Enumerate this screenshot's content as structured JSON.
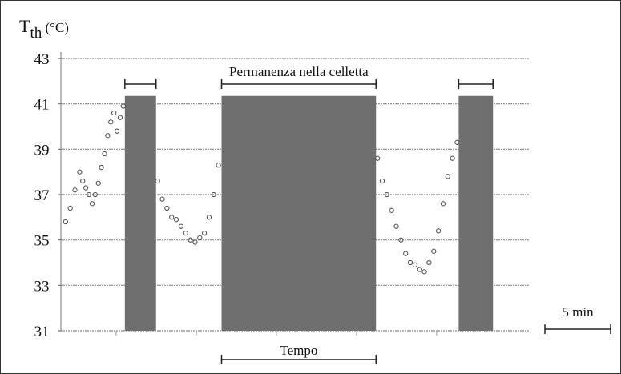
{
  "chart_data": {
    "type": "scatter",
    "ylabel_main": "T",
    "ylabel_sub": "th",
    "ylabel_unit": " (°C)",
    "ylim": [
      31,
      43
    ],
    "ytick_labels": [
      "43",
      "41",
      "39",
      "37",
      "35",
      "33",
      "31"
    ],
    "ytick_values": [
      43,
      41,
      39,
      37,
      35,
      33,
      31
    ],
    "x_unit_min": [
      0,
      30
    ],
    "grid": true,
    "annotations": {
      "top_bar_label": "Permanenza nella celletta",
      "bottom_bar_label": "Tempo",
      "scale_bar_label": "5 min"
    },
    "shaded_intervals": [
      {
        "x_start": 4.1,
        "x_end": 6.1
      },
      {
        "x_start": 10.3,
        "x_end": 20.2
      },
      {
        "x_start": 25.5,
        "x_end": 27.7
      }
    ],
    "series": [
      {
        "x": [
          0.3,
          0.6,
          0.9,
          1.2,
          1.4,
          1.6,
          1.8,
          2.0,
          2.2,
          2.4,
          2.6,
          2.8,
          3.0,
          3.2,
          3.4,
          3.6,
          3.8,
          4.0,
          6.2,
          6.5,
          6.8,
          7.1,
          7.4,
          7.7,
          8.0,
          8.3,
          8.6,
          8.9,
          9.2,
          9.5,
          9.8,
          10.1,
          20.3,
          20.6,
          20.9,
          21.2,
          21.5,
          21.8,
          22.1,
          22.4,
          22.7,
          23.0,
          23.3,
          23.6,
          23.9,
          24.2,
          24.5,
          24.8,
          25.1,
          25.4
        ],
        "y": [
          35.8,
          36.4,
          37.2,
          38.0,
          37.6,
          37.3,
          37.0,
          36.6,
          37.0,
          37.5,
          38.2,
          38.8,
          39.6,
          40.2,
          40.6,
          39.8,
          40.4,
          40.9,
          37.6,
          36.8,
          36.4,
          36.0,
          35.9,
          35.6,
          35.3,
          35.0,
          34.9,
          35.1,
          35.3,
          36.0,
          37.0,
          38.3,
          38.6,
          37.6,
          37.0,
          36.3,
          35.6,
          35.0,
          34.4,
          34.0,
          33.9,
          33.7,
          33.6,
          34.0,
          34.5,
          35.4,
          36.6,
          37.8,
          38.6,
          39.3
        ]
      }
    ]
  }
}
